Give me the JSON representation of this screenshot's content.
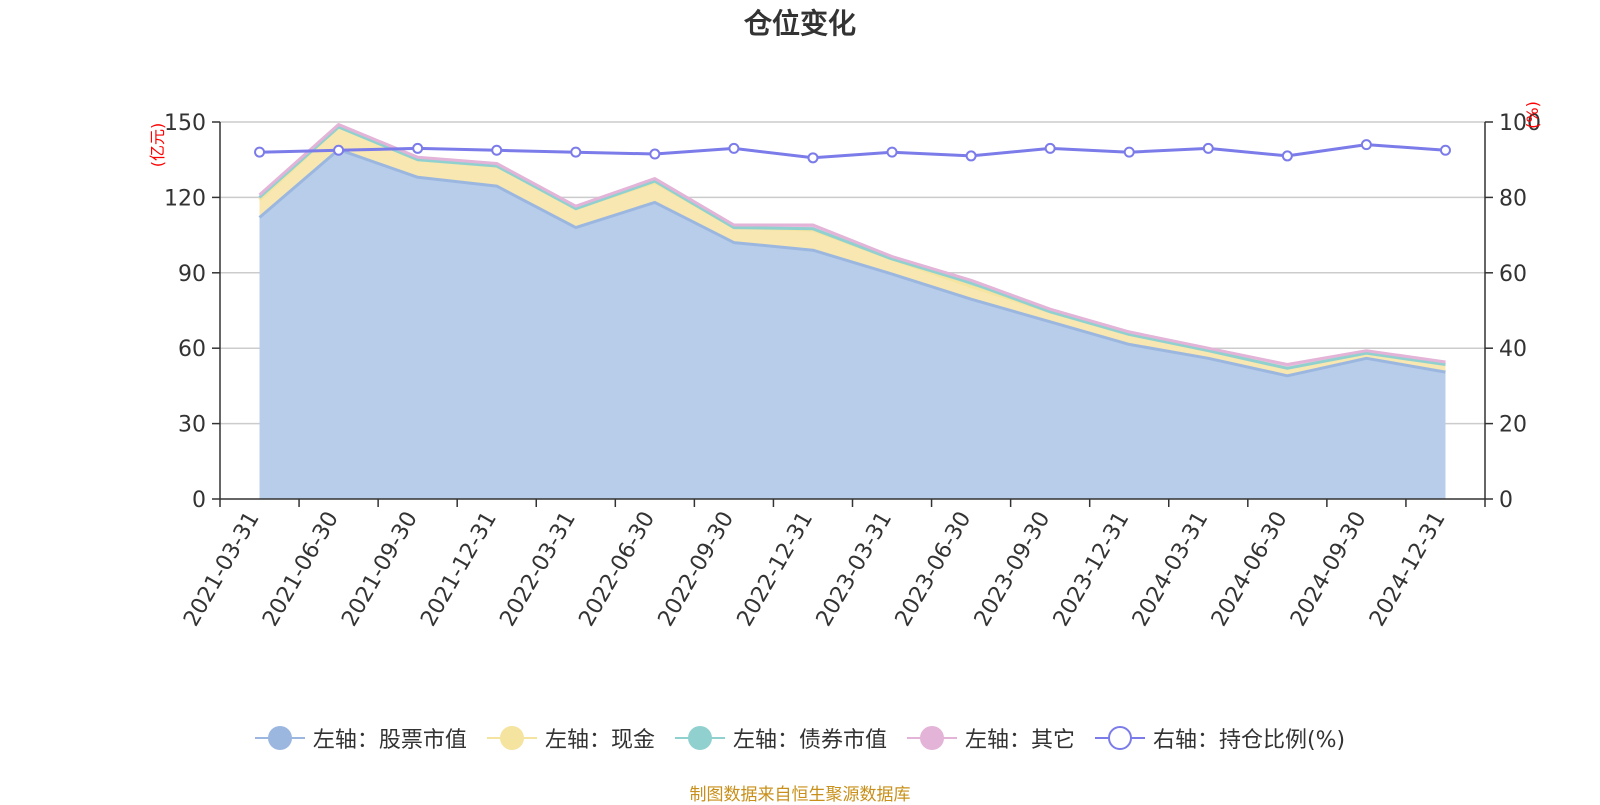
{
  "chart_data": {
    "type": "area",
    "title": "仓位变化",
    "left_axis_unit": "(亿元)",
    "right_axis_unit": "(%)",
    "left_ylim": [
      0,
      150
    ],
    "left_ticks": [
      "0",
      "30",
      "60",
      "90",
      "120",
      "150"
    ],
    "right_ylim": [
      0,
      100
    ],
    "right_ticks": [
      "0",
      "20",
      "40",
      "60",
      "80",
      "100"
    ],
    "categories": [
      "2021-03-31",
      "2021-06-30",
      "2021-09-30",
      "2021-12-31",
      "2022-03-31",
      "2022-06-30",
      "2022-09-30",
      "2022-12-31",
      "2023-03-31",
      "2023-06-30",
      "2023-09-30",
      "2023-12-31",
      "2024-03-31",
      "2024-06-30",
      "2024-09-30",
      "2024-12-31"
    ],
    "series": [
      {
        "name": "左轴：股票市值",
        "axis": "left",
        "kind": "stacked-area",
        "color": "#9bb7e0",
        "fill": "#b8cdea",
        "values": [
          112,
          139,
          128,
          124.5,
          108,
          118,
          102,
          99,
          89.5,
          79.5,
          70.5,
          61.5,
          56,
          49,
          56,
          50.5
        ]
      },
      {
        "name": "左轴：现金",
        "axis": "left",
        "kind": "stacked-area",
        "color": "#f5e3a0",
        "fill": "#f8e7b0",
        "values": [
          7,
          9,
          7,
          8,
          7.5,
          8,
          6,
          8,
          6,
          5,
          4,
          4,
          3,
          3,
          2,
          3
        ]
      },
      {
        "name": "左轴：债券市值",
        "axis": "left",
        "kind": "stacked-area",
        "color": "#90d1d0",
        "fill": "#a5d9d6",
        "values": [
          1,
          0,
          0,
          0,
          0,
          0.5,
          0,
          0.5,
          0,
          1.5,
          0,
          0,
          0,
          0,
          0,
          0
        ]
      },
      {
        "name": "左轴：其它",
        "axis": "left",
        "kind": "stacked-area",
        "color": "#e3b3d8",
        "fill": "#ebc3e3",
        "values": [
          1,
          1,
          1,
          1,
          1,
          1,
          1,
          1.5,
          1,
          1,
          1,
          1,
          1,
          1.5,
          1,
          1
        ]
      },
      {
        "name": "右轴：持仓比例(%)",
        "axis": "right",
        "kind": "line",
        "color": "#7b7bea",
        "values": [
          92,
          92.5,
          93,
          92.5,
          92,
          91.5,
          93,
          90.5,
          92,
          91,
          93,
          92,
          93,
          91,
          94,
          92.5
        ]
      }
    ]
  },
  "source_note": "制图数据来自恒生聚源数据库"
}
